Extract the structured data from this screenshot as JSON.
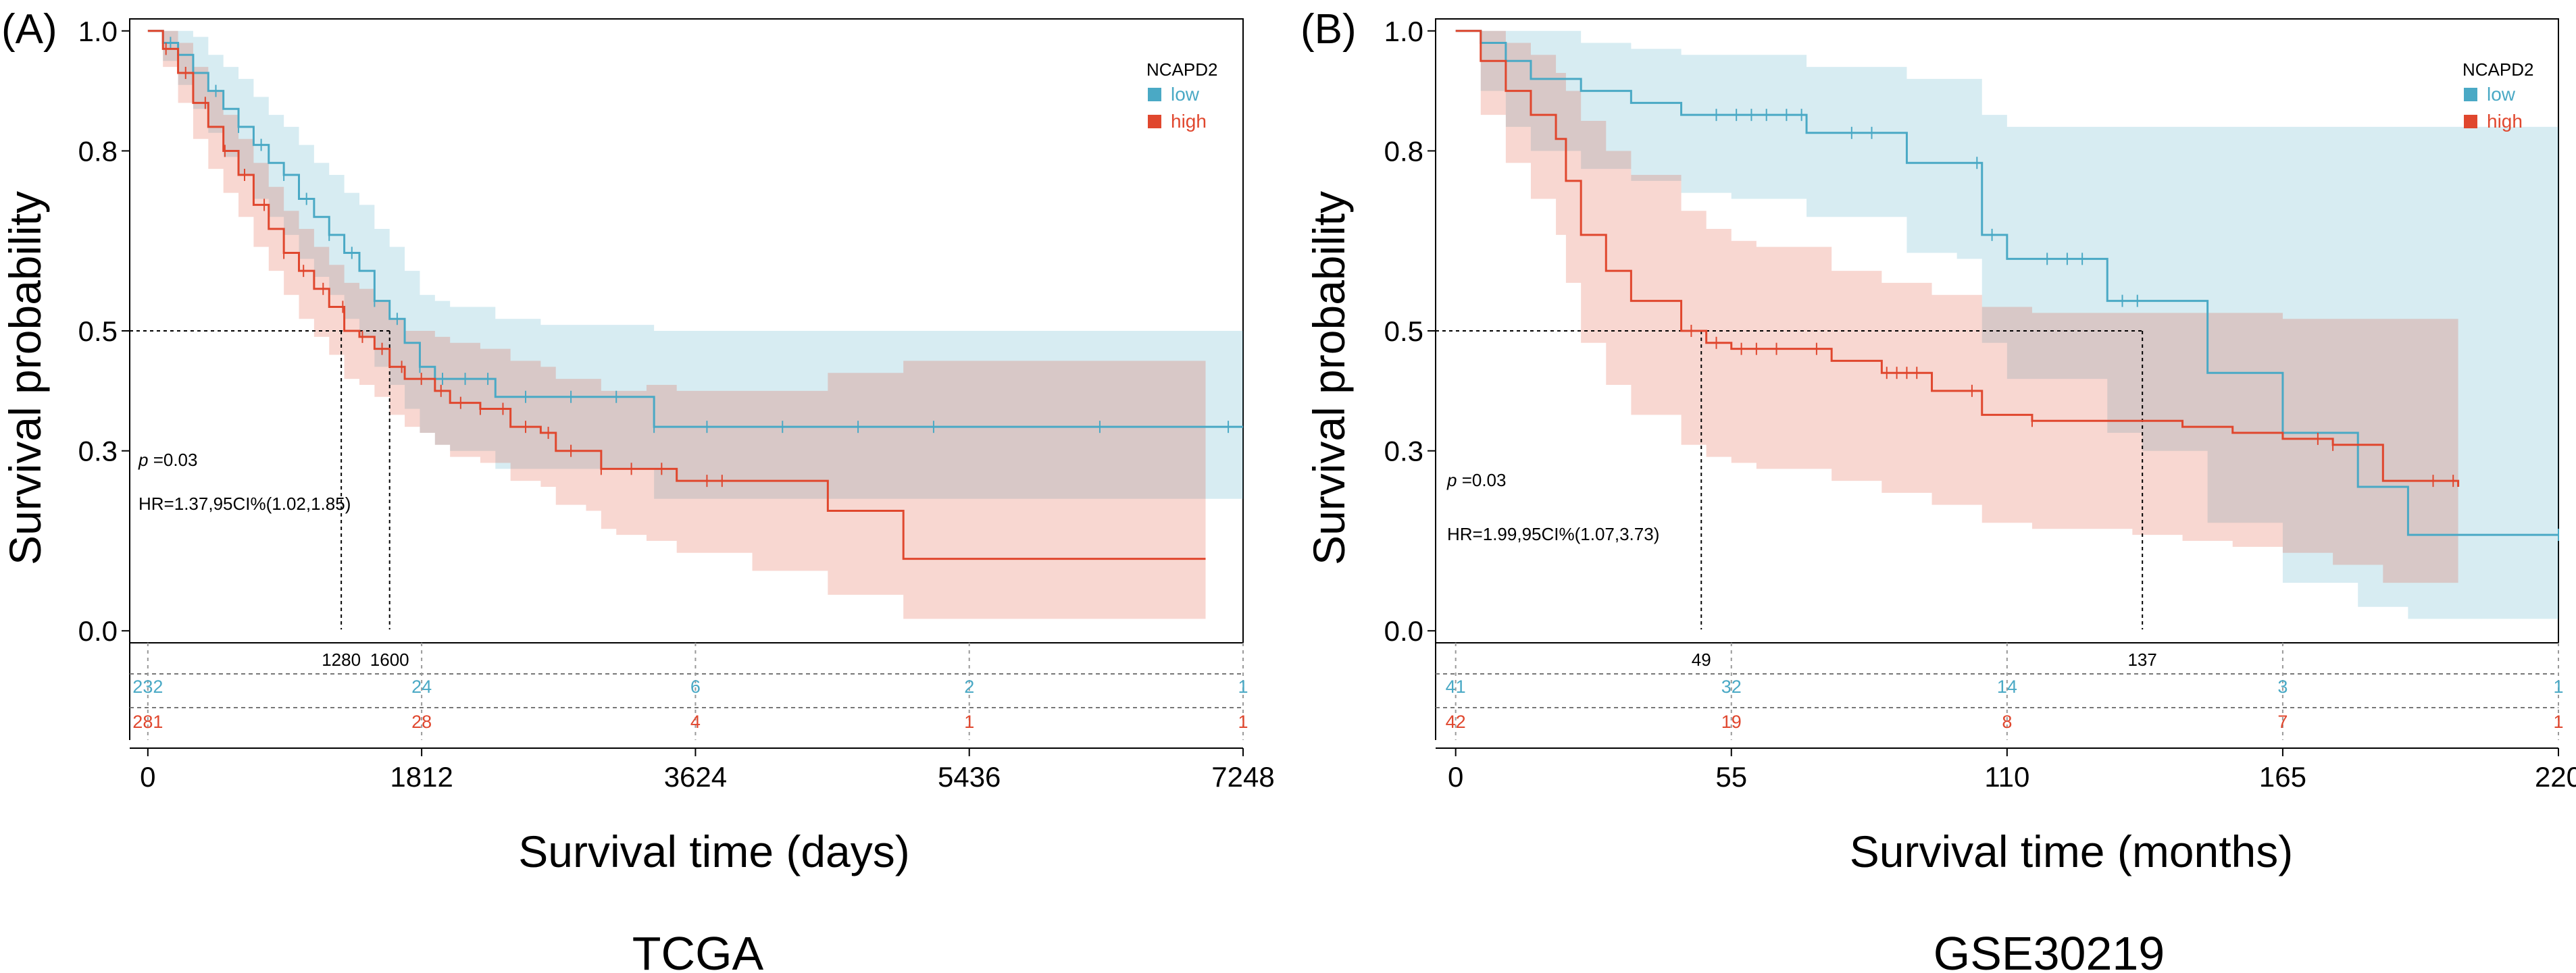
{
  "colors": {
    "low": "#4aa9c5",
    "high": "#e0472e",
    "low_band": "#d6ecf3",
    "high_band": "#f6d2c6",
    "overlap_band": "#dcc7bf"
  },
  "chart_data": [
    {
      "type": "line",
      "panel_letter": "(A)",
      "title": "TCGA",
      "xlabel": "Survival time (days)",
      "ylabel": "Survival probability",
      "xlim": [
        -120,
        7248
      ],
      "ylim": [
        -0.02,
        1.02
      ],
      "xticks": [
        0,
        1812,
        3624,
        5436,
        7248
      ],
      "xtick_labels": [
        "0",
        "1812",
        "3624",
        "5436",
        "7248"
      ],
      "yticks": [
        0.0,
        0.3,
        0.5,
        0.8,
        1.0
      ],
      "ytick_labels": [
        "0.0",
        "0.3",
        "0.5",
        "0.8",
        "1.0"
      ],
      "legend": {
        "title": "NCAPD2",
        "entries": [
          "low",
          "high"
        ],
        "position": "top-right"
      },
      "annotations": {
        "p_prefix": "p",
        "p_value": " =0.03",
        "hr": "HR=1.37,95CI%(1.02,1.85)"
      },
      "medians": [
        {
          "x": 1280,
          "label": "1280"
        },
        {
          "x": 1600,
          "label": "1600"
        }
      ],
      "risk_table": {
        "times": [
          0,
          1812,
          3624,
          5436,
          7248
        ],
        "low": [
          "232",
          "24",
          "6",
          "2",
          "1"
        ],
        "high": [
          "281",
          "28",
          "4",
          "1",
          "1"
        ]
      },
      "series": [
        {
          "name": "low",
          "x": [
            0,
            100,
            200,
            300,
            400,
            500,
            600,
            700,
            800,
            900,
            1000,
            1100,
            1200,
            1300,
            1400,
            1500,
            1600,
            1700,
            1800,
            1900,
            2000,
            2300,
            2600,
            3000,
            3300,
            3350,
            4000,
            5000,
            6000,
            7000,
            7248
          ],
          "y": [
            1.0,
            0.98,
            0.96,
            0.93,
            0.9,
            0.87,
            0.84,
            0.81,
            0.78,
            0.76,
            0.72,
            0.69,
            0.66,
            0.63,
            0.6,
            0.55,
            0.52,
            0.48,
            0.44,
            0.42,
            0.42,
            0.39,
            0.39,
            0.39,
            0.39,
            0.34,
            0.34,
            0.34,
            0.34,
            0.34,
            0.34
          ],
          "upper": [
            1.0,
            1.0,
            1.0,
            0.99,
            0.96,
            0.94,
            0.92,
            0.89,
            0.86,
            0.84,
            0.81,
            0.78,
            0.76,
            0.73,
            0.71,
            0.67,
            0.64,
            0.6,
            0.56,
            0.55,
            0.54,
            0.52,
            0.51,
            0.51,
            0.51,
            0.5,
            0.5,
            0.5,
            0.5,
            0.5,
            0.5
          ],
          "lower": [
            1.0,
            0.95,
            0.91,
            0.87,
            0.83,
            0.79,
            0.76,
            0.72,
            0.69,
            0.66,
            0.62,
            0.59,
            0.56,
            0.52,
            0.49,
            0.44,
            0.41,
            0.37,
            0.33,
            0.31,
            0.3,
            0.27,
            0.27,
            0.27,
            0.27,
            0.22,
            0.22,
            0.22,
            0.22,
            0.22,
            0.22
          ],
          "censor_x": [
            150,
            300,
            450,
            600,
            750,
            900,
            1050,
            1200,
            1350,
            1500,
            1650,
            1800,
            1950,
            2100,
            2250,
            2500,
            2800,
            3100,
            3350,
            3700,
            4200,
            4700,
            5200,
            6300,
            7150
          ]
        },
        {
          "name": "high",
          "x": [
            0,
            100,
            200,
            300,
            400,
            500,
            600,
            700,
            800,
            900,
            1000,
            1100,
            1200,
            1300,
            1400,
            1500,
            1600,
            1700,
            1800,
            1900,
            2000,
            2200,
            2400,
            2600,
            2700,
            2900,
            3000,
            3100,
            3300,
            3500,
            4000,
            4500,
            5000,
            6000,
            7000
          ],
          "y": [
            1.0,
            0.97,
            0.93,
            0.88,
            0.84,
            0.8,
            0.76,
            0.71,
            0.67,
            0.63,
            0.6,
            0.57,
            0.54,
            0.5,
            0.49,
            0.47,
            0.44,
            0.42,
            0.42,
            0.4,
            0.38,
            0.37,
            0.34,
            0.33,
            0.3,
            0.3,
            0.27,
            0.27,
            0.27,
            0.25,
            0.25,
            0.2,
            0.12,
            0.12,
            0.12
          ],
          "upper": [
            1.0,
            1.0,
            0.98,
            0.94,
            0.9,
            0.86,
            0.82,
            0.78,
            0.74,
            0.7,
            0.67,
            0.64,
            0.61,
            0.58,
            0.57,
            0.55,
            0.52,
            0.5,
            0.5,
            0.49,
            0.48,
            0.47,
            0.45,
            0.44,
            0.42,
            0.42,
            0.4,
            0.4,
            0.41,
            0.4,
            0.4,
            0.43,
            0.45,
            0.45,
            0.45
          ],
          "lower": [
            1.0,
            0.94,
            0.88,
            0.82,
            0.77,
            0.73,
            0.69,
            0.64,
            0.6,
            0.56,
            0.52,
            0.49,
            0.46,
            0.42,
            0.41,
            0.39,
            0.36,
            0.34,
            0.33,
            0.31,
            0.29,
            0.28,
            0.25,
            0.24,
            0.21,
            0.2,
            0.17,
            0.16,
            0.15,
            0.13,
            0.1,
            0.06,
            0.02,
            0.02,
            0.02
          ],
          "censor_x": [
            120,
            250,
            380,
            510,
            640,
            770,
            900,
            1030,
            1160,
            1290,
            1420,
            1550,
            1680,
            1810,
            1940,
            2070,
            2200,
            2350,
            2500,
            2650,
            2800,
            3000,
            3200,
            3400,
            3700,
            3800
          ]
        }
      ]
    },
    {
      "type": "line",
      "panel_letter": "(B)",
      "title": "GSE30219",
      "xlabel": "Survival time (months)",
      "ylabel": "Survival probability",
      "xlim": [
        -4,
        220
      ],
      "ylim": [
        -0.02,
        1.02
      ],
      "xticks": [
        0,
        55,
        110,
        165,
        220
      ],
      "xtick_labels": [
        "0",
        "55",
        "110",
        "165",
        "220"
      ],
      "yticks": [
        0.0,
        0.3,
        0.5,
        0.8,
        1.0
      ],
      "ytick_labels": [
        "0.0",
        "0.3",
        "0.5",
        "0.8",
        "1.0"
      ],
      "legend": {
        "title": "NCAPD2",
        "entries": [
          "low",
          "high"
        ],
        "position": "top-right"
      },
      "annotations": {
        "p_prefix": "p",
        "p_value": " =0.03",
        "hr": "HR=1.99,95CI%(1.07,3.73)"
      },
      "medians": [
        {
          "x": 49,
          "label": "49"
        },
        {
          "x": 137,
          "label": "137"
        }
      ],
      "risk_table": {
        "times": [
          0,
          55,
          110,
          165,
          220
        ],
        "low": [
          "41",
          "32",
          "14",
          "3",
          "1"
        ],
        "high": [
          "42",
          "19",
          "8",
          "7",
          "1"
        ]
      },
      "series": [
        {
          "name": "low",
          "x": [
            0,
            5,
            10,
            15,
            25,
            35,
            45,
            55,
            65,
            70,
            80,
            90,
            100,
            105,
            110,
            120,
            130,
            137,
            150,
            165,
            180,
            190,
            220
          ],
          "y": [
            1.0,
            0.98,
            0.95,
            0.92,
            0.9,
            0.88,
            0.86,
            0.86,
            0.86,
            0.83,
            0.83,
            0.78,
            0.78,
            0.66,
            0.62,
            0.62,
            0.55,
            0.55,
            0.43,
            0.33,
            0.24,
            0.16,
            0.16
          ],
          "upper": [
            1.0,
            1.0,
            1.0,
            1.0,
            0.98,
            0.97,
            0.96,
            0.96,
            0.96,
            0.94,
            0.94,
            0.92,
            0.92,
            0.86,
            0.84,
            0.84,
            0.84,
            0.84,
            0.84,
            0.84,
            0.84,
            0.84,
            0.84
          ],
          "lower": [
            1.0,
            0.9,
            0.84,
            0.8,
            0.77,
            0.75,
            0.73,
            0.72,
            0.72,
            0.69,
            0.69,
            0.63,
            0.62,
            0.48,
            0.42,
            0.42,
            0.33,
            0.3,
            0.18,
            0.08,
            0.04,
            0.02,
            0.02
          ],
          "censor_x": [
            52,
            56,
            59,
            62,
            66,
            69,
            79,
            83,
            104,
            107,
            118,
            122,
            125,
            133,
            136,
            220
          ]
        },
        {
          "name": "high",
          "x": [
            0,
            5,
            10,
            15,
            20,
            22,
            25,
            30,
            35,
            45,
            50,
            55,
            60,
            75,
            85,
            95,
            105,
            115,
            125,
            135,
            145,
            155,
            165,
            175,
            185,
            200
          ],
          "y": [
            1.0,
            0.95,
            0.9,
            0.86,
            0.82,
            0.75,
            0.66,
            0.6,
            0.55,
            0.5,
            0.48,
            0.47,
            0.47,
            0.45,
            0.43,
            0.4,
            0.36,
            0.35,
            0.35,
            0.35,
            0.34,
            0.33,
            0.32,
            0.31,
            0.25,
            0.24
          ],
          "upper": [
            1.0,
            1.0,
            0.98,
            0.96,
            0.93,
            0.9,
            0.85,
            0.8,
            0.76,
            0.7,
            0.67,
            0.65,
            0.64,
            0.6,
            0.58,
            0.56,
            0.54,
            0.53,
            0.53,
            0.53,
            0.53,
            0.53,
            0.52,
            0.52,
            0.52,
            0.52
          ],
          "lower": [
            1.0,
            0.86,
            0.78,
            0.72,
            0.66,
            0.58,
            0.48,
            0.41,
            0.36,
            0.31,
            0.29,
            0.28,
            0.27,
            0.25,
            0.23,
            0.21,
            0.18,
            0.17,
            0.17,
            0.16,
            0.15,
            0.14,
            0.13,
            0.11,
            0.08,
            0.08
          ],
          "censor_x": [
            47,
            52,
            57,
            60,
            64,
            72,
            86,
            88,
            90,
            92,
            103,
            115,
            172,
            175,
            195,
            199
          ]
        }
      ]
    }
  ]
}
